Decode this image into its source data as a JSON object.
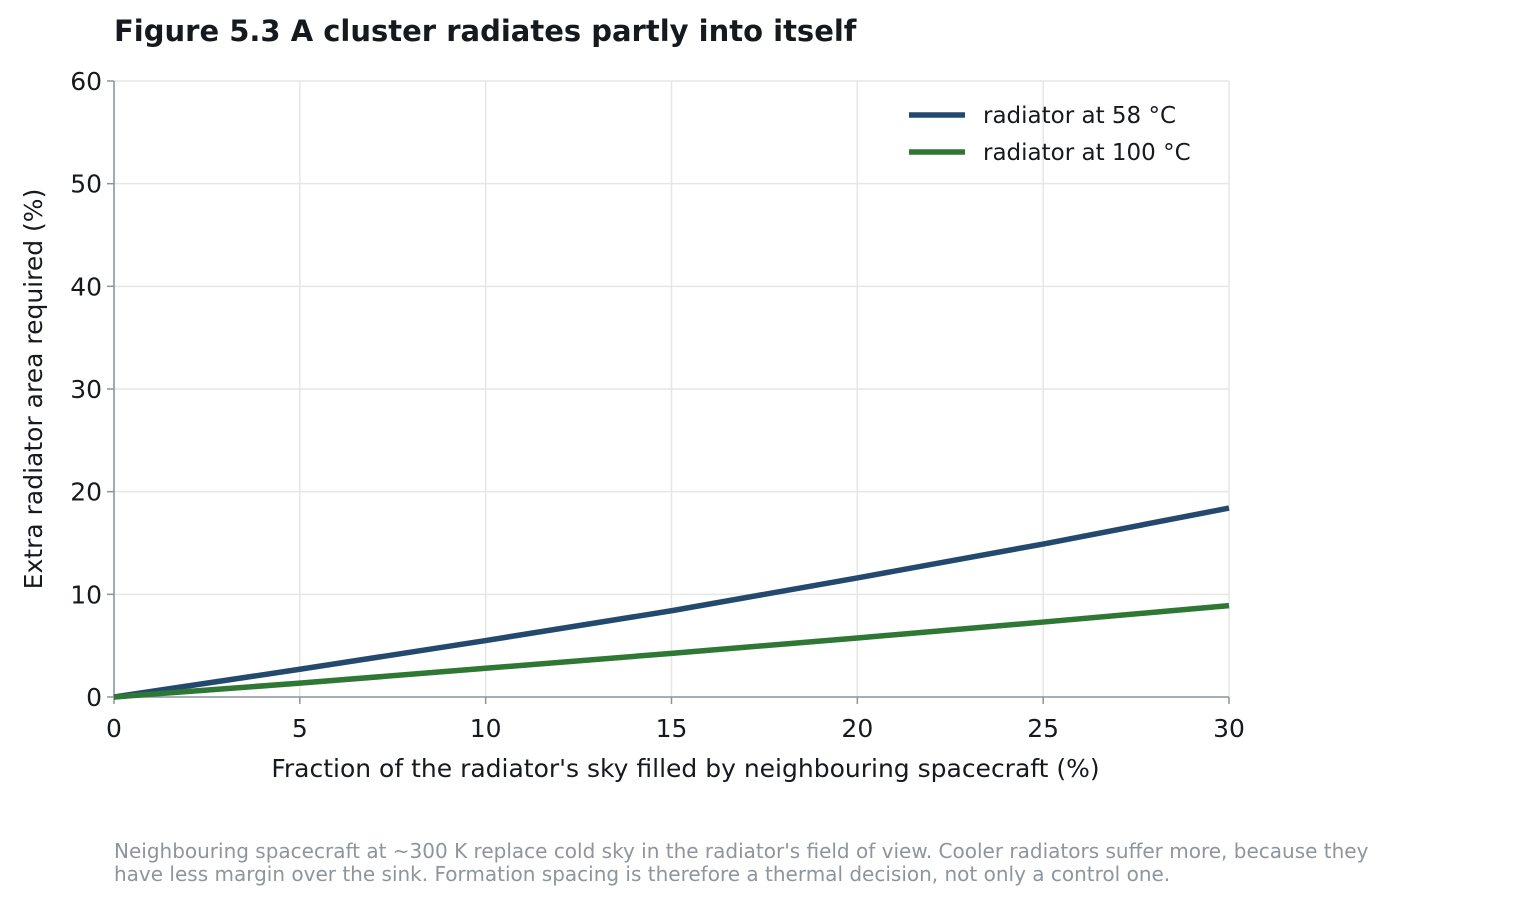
{
  "figure": {
    "title": "Figure 5.3  A cluster radiates partly into itself",
    "caption_line1": "Neighbouring spacecraft at ~300 K replace cold sky in the radiator's field of view. Cooler radiators suffer more, because they",
    "caption_line2": "have less margin over the sink. Formation spacing is therefore a thermal decision, not only a control one."
  },
  "colors": {
    "series_58": "#234a6e",
    "series_100": "#2e7734",
    "grid": "#e6e6e6",
    "axis": "#8a949e",
    "text": "#16191d"
  },
  "chart_data": {
    "type": "line",
    "title": "Figure 5.3  A cluster radiates partly into itself",
    "xlabel": "Fraction of the radiator's sky filled by neighbouring spacecraft (%)",
    "ylabel": "Extra radiator area required (%)",
    "xlim": [
      0,
      30
    ],
    "ylim": [
      0,
      60
    ],
    "xticks": [
      0,
      5,
      10,
      15,
      20,
      25,
      30
    ],
    "yticks": [
      0,
      10,
      20,
      30,
      40,
      50,
      60
    ],
    "grid": true,
    "legend_position": "top-right",
    "x": [
      0,
      5,
      10,
      15,
      20,
      25,
      30
    ],
    "series": [
      {
        "name": "radiator at 58 °C",
        "color": "#234a6e",
        "values": [
          0,
          2.7,
          5.5,
          8.4,
          11.6,
          14.9,
          18.4
        ]
      },
      {
        "name": "radiator at 100 °C",
        "color": "#2e7734",
        "values": [
          0,
          1.35,
          2.8,
          4.25,
          5.75,
          7.3,
          8.9
        ]
      }
    ]
  }
}
